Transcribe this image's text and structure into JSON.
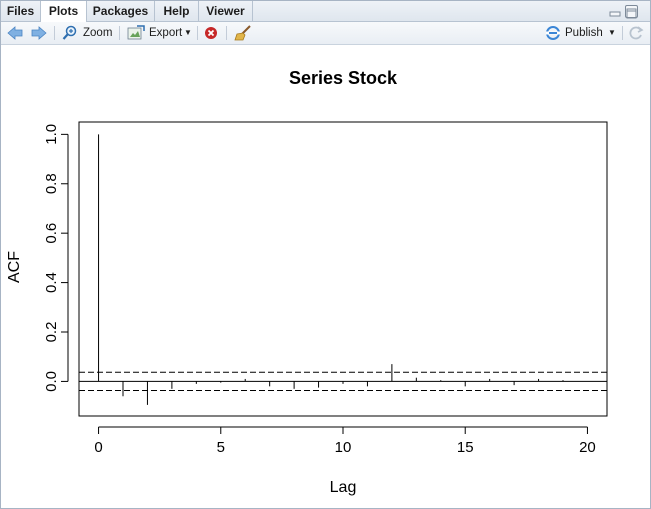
{
  "tabs": [
    {
      "label": "Files",
      "active": false
    },
    {
      "label": "Plots",
      "active": true
    },
    {
      "label": "Packages",
      "active": false
    },
    {
      "label": "Help",
      "active": false
    },
    {
      "label": "Viewer",
      "active": false
    }
  ],
  "toolbar": {
    "zoom_label": "Zoom",
    "export_label": "Export",
    "publish_label": "Publish",
    "icons": [
      "back-arrow-icon",
      "forward-arrow-icon",
      "zoom-icon",
      "export-icon",
      "remove-plot-icon",
      "broom-icon",
      "publish-icon",
      "refresh-icon"
    ]
  },
  "colors": {
    "tab_bg": "#e3e9f0",
    "accent_blue": "#3b86d6",
    "remove_red": "#c62828",
    "plot_ink": "#000000"
  },
  "chart_data": {
    "type": "bar",
    "title": "Series  Stock",
    "xlabel": "Lag",
    "ylabel": "ACF",
    "x": [
      0,
      1,
      2,
      3,
      4,
      5,
      6,
      7,
      8,
      9,
      10,
      11,
      12,
      13,
      14,
      15,
      16,
      17,
      18,
      19,
      20
    ],
    "values": [
      1.0,
      -0.06,
      -0.095,
      -0.03,
      -0.01,
      -0.005,
      0.01,
      -0.02,
      -0.03,
      -0.025,
      -0.01,
      -0.02,
      0.07,
      0.015,
      0.005,
      -0.02,
      0.01,
      -0.015,
      0.01,
      0.005,
      0.0
    ],
    "ci_upper": 0.037,
    "ci_lower": -0.037,
    "xlim": [
      -0.8,
      20.8
    ],
    "ylim": [
      -0.14,
      1.05
    ],
    "xticks": [
      0,
      5,
      10,
      15,
      20
    ],
    "yticks": [
      0.0,
      0.2,
      0.4,
      0.6,
      0.8,
      1.0
    ],
    "xtick_labels": [
      "0",
      "5",
      "10",
      "15",
      "20"
    ],
    "ytick_labels": [
      "0.0",
      "0.2",
      "0.4",
      "0.6",
      "0.8",
      "1.0"
    ],
    "grid": false
  }
}
